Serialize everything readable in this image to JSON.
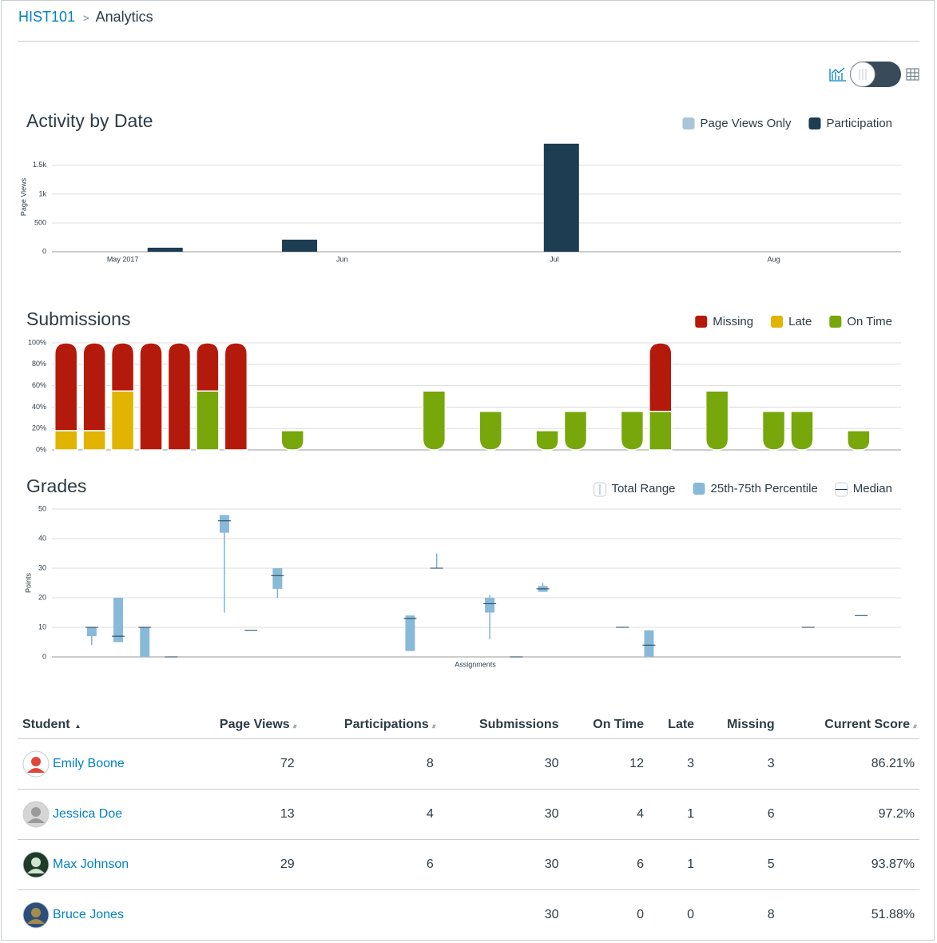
{
  "breadcrumb": {
    "course": "HIST101",
    "page": "Analytics"
  },
  "chart_data": [
    {
      "type": "bar",
      "title": "Activity by Date",
      "ylabel": "Page Views",
      "ylim": [
        0,
        1900
      ],
      "yticks": [
        0,
        500,
        {
          "value": 1000,
          "label": "1k"
        },
        {
          "value": 1500,
          "label": "1.5k"
        }
      ],
      "xlim": [
        -10,
        110
      ],
      "xticks": [
        {
          "value": 0,
          "label": "May 2017"
        },
        {
          "value": 31,
          "label": "Jun"
        },
        {
          "value": 61,
          "label": "Jul"
        },
        {
          "value": 92,
          "label": "Aug"
        }
      ],
      "grid": true,
      "legend": "top-right",
      "series": [
        {
          "name": "Page Views Only",
          "color": "#a9c6d6",
          "x": [],
          "values": []
        },
        {
          "name": "Participation",
          "color": "#1c3d52",
          "x": [
            6,
            25,
            62
          ],
          "values": [
            70,
            210,
            1875
          ]
        }
      ]
    },
    {
      "type": "stacked_bar",
      "title": "Submissions",
      "ylim": [
        0,
        100
      ],
      "yticks": [
        {
          "value": 0,
          "label": "0%"
        },
        {
          "value": 20,
          "label": "20%"
        },
        {
          "value": 40,
          "label": "40%"
        },
        {
          "value": 60,
          "label": "60%"
        },
        {
          "value": 80,
          "label": "80%"
        },
        {
          "value": 100,
          "label": "100%"
        }
      ],
      "grid": true,
      "legend": "top-right",
      "categories": [
        null,
        null,
        null,
        null,
        null,
        null,
        null,
        null,
        null,
        null,
        null,
        null,
        null,
        null,
        null,
        null,
        null,
        null,
        null,
        null,
        null,
        null,
        null,
        null,
        null,
        null,
        null,
        null,
        null,
        null
      ],
      "series": [
        {
          "name": "Missing",
          "color": "#b41a0b",
          "values": [
            82,
            82,
            45,
            100,
            100,
            45,
            100,
            0,
            0,
            0,
            0,
            0,
            0,
            0,
            0,
            0,
            0,
            0,
            0,
            0,
            0,
            64,
            0,
            0,
            0,
            0,
            0,
            0,
            0,
            0
          ]
        },
        {
          "name": "Late",
          "color": "#e0b400",
          "values": [
            18,
            18,
            55,
            0,
            0,
            0,
            0,
            0,
            0,
            0,
            0,
            0,
            0,
            0,
            0,
            0,
            0,
            0,
            0,
            0,
            0,
            0,
            0,
            0,
            0,
            0,
            0,
            0,
            0,
            0
          ]
        },
        {
          "name": "On Time",
          "color": "#77a70a",
          "values": [
            0,
            0,
            0,
            0,
            0,
            55,
            0,
            0,
            18,
            0,
            0,
            0,
            0,
            55,
            0,
            36,
            0,
            18,
            36,
            0,
            36,
            36,
            0,
            55,
            0,
            36,
            36,
            0,
            18,
            0
          ]
        }
      ]
    },
    {
      "type": "box",
      "title": "Grades",
      "ylabel": "Points",
      "xlabel": "Assignments",
      "ylim": [
        0,
        50
      ],
      "yticks": [
        0,
        10,
        20,
        30,
        40,
        50
      ],
      "grid": true,
      "legend": "top-right",
      "legend_items": [
        "Total Range",
        "25th-75th Percentile",
        "Median"
      ],
      "colors": {
        "range": "#7fb2d2",
        "box": "#89b9d8",
        "median": "#1c3d52"
      },
      "categories": [
        null,
        null,
        null,
        null,
        null,
        null,
        null,
        null,
        null,
        null,
        null,
        null,
        null,
        null,
        null,
        null,
        null,
        null,
        null,
        null,
        null,
        null,
        null,
        null,
        null,
        null,
        null,
        null,
        null,
        null,
        null,
        null
      ],
      "boxes": [
        null,
        {
          "min": 4,
          "q1": 7,
          "median": 10,
          "q3": 10,
          "max": 10
        },
        {
          "min": 5,
          "q1": 5,
          "median": 7,
          "q3": 20,
          "max": 20
        },
        {
          "min": 0,
          "q1": 0,
          "median": 10,
          "q3": 10,
          "max": 10
        },
        {
          "min": 0,
          "q1": 0,
          "median": 0,
          "q3": 0,
          "max": 0
        },
        null,
        {
          "min": 15,
          "q1": 42,
          "median": 46,
          "q3": 48,
          "max": 48
        },
        {
          "min": 9,
          "q1": 9,
          "median": 9,
          "q3": 9,
          "max": 9
        },
        {
          "min": 20,
          "q1": 23,
          "median": 27.5,
          "q3": 30,
          "max": 30
        },
        null,
        null,
        null,
        null,
        {
          "min": 2,
          "q1": 2,
          "median": 13,
          "q3": 14,
          "max": 14
        },
        {
          "min": 30,
          "q1": 30,
          "median": 30,
          "q3": 30,
          "max": 35
        },
        null,
        {
          "min": 6,
          "q1": 15,
          "median": 18,
          "q3": 20,
          "max": 21
        },
        {
          "min": 0,
          "q1": 0,
          "median": 0,
          "q3": 0,
          "max": 0
        },
        {
          "min": 22,
          "q1": 22,
          "median": 23,
          "q3": 24,
          "max": 25
        },
        null,
        null,
        {
          "min": 10,
          "q1": 10,
          "median": 10,
          "q3": 10,
          "max": 10
        },
        {
          "min": 0,
          "q1": 0,
          "median": 4,
          "q3": 9,
          "max": 9
        },
        null,
        null,
        null,
        null,
        null,
        {
          "min": 10,
          "q1": 10,
          "median": 10,
          "q3": 10,
          "max": 10
        },
        null,
        {
          "min": 14,
          "q1": 14,
          "median": 14,
          "q3": 14,
          "max": 14
        },
        null
      ]
    }
  ],
  "table": {
    "columns": [
      "Student",
      "Page Views",
      "Participations",
      "Submissions",
      "On Time",
      "Late",
      "Missing",
      "Current Score"
    ],
    "rows": [
      [
        "Emily Boone",
        72,
        8,
        30,
        12,
        3,
        3,
        "86.21%"
      ],
      [
        "Jessica Doe",
        13,
        4,
        30,
        4,
        1,
        6,
        "97.2%"
      ],
      [
        "Max Johnson",
        29,
        6,
        30,
        6,
        1,
        5,
        "93.87%"
      ],
      [
        "Bruce Jones",
        null,
        null,
        30,
        0,
        0,
        8,
        "51.88%"
      ]
    ]
  }
}
